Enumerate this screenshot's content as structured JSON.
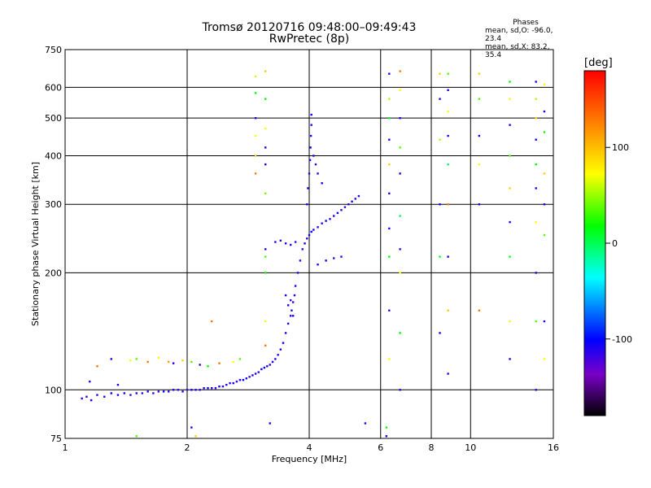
{
  "title": {
    "line1": "Tromsø 20120716 09:48:00–09:49:43",
    "line2": "RwPretec (8p)"
  },
  "stats": {
    "header": "Phases",
    "line1": "mean, sd,O: -96.0, 23.4",
    "line2": "mean, sd,X: 83.2, 35.4"
  },
  "colorbar": {
    "unit": "[deg]",
    "range": [
      -180,
      180
    ],
    "tick_labels": [
      "100",
      "0",
      "-100"
    ],
    "tick_values": [
      100,
      0,
      -100
    ]
  },
  "chart_data": {
    "type": "scatter",
    "xlabel": "Frequency [MHz]",
    "ylabel": "Stationary phase Virtual Height [km]",
    "xscale": "log",
    "yscale": "log",
    "xlim": [
      1,
      16
    ],
    "ylim": [
      75,
      750
    ],
    "grid": true,
    "x_ticks": [
      1,
      2,
      4,
      6,
      8,
      10,
      16
    ],
    "x_tick_labels": [
      "1",
      "2",
      "4",
      "6",
      "8",
      "10",
      "16"
    ],
    "y_ticks": [
      75,
      100,
      200,
      300,
      400,
      500,
      600,
      750
    ],
    "y_tick_labels": [
      "75",
      "100",
      "200",
      "300",
      "400",
      "500",
      "600",
      "750"
    ],
    "x_grid": [
      2,
      4,
      6,
      8,
      10
    ],
    "y_grid": [
      100,
      200,
      300,
      400,
      500,
      600
    ],
    "series": [
      {
        "points": [
          [
            1.1,
            95,
            -100
          ],
          [
            1.13,
            96,
            -110
          ],
          [
            1.16,
            94,
            -95
          ],
          [
            1.2,
            97,
            -100
          ],
          [
            1.25,
            96,
            -105
          ],
          [
            1.3,
            98,
            -90
          ],
          [
            1.35,
            97,
            -100
          ],
          [
            1.4,
            98,
            -95
          ],
          [
            1.45,
            97,
            -110
          ],
          [
            1.5,
            98,
            -100
          ],
          [
            1.55,
            98,
            -105
          ],
          [
            1.6,
            99,
            -95
          ],
          [
            1.65,
            98,
            -100
          ],
          [
            1.7,
            99,
            -110
          ],
          [
            1.75,
            99,
            -90
          ],
          [
            1.8,
            99,
            -100
          ],
          [
            1.85,
            100,
            -95
          ],
          [
            1.9,
            100,
            -105
          ],
          [
            1.95,
            99,
            -100
          ],
          [
            2.0,
            100,
            -110
          ],
          [
            2.05,
            100,
            -95
          ],
          [
            2.1,
            100,
            -100
          ],
          [
            2.15,
            100,
            -105
          ],
          [
            2.2,
            101,
            -100
          ],
          [
            2.25,
            101,
            -90
          ],
          [
            2.3,
            101,
            -100
          ],
          [
            2.35,
            101,
            -110
          ],
          [
            2.4,
            102,
            -95
          ],
          [
            2.45,
            102,
            -100
          ],
          [
            2.5,
            103,
            -105
          ],
          [
            2.55,
            104,
            -100
          ],
          [
            2.6,
            104,
            -95
          ],
          [
            2.65,
            105,
            -110
          ],
          [
            2.7,
            106,
            -100
          ],
          [
            2.75,
            106,
            -90
          ],
          [
            2.8,
            107,
            -100
          ],
          [
            2.85,
            108,
            -105
          ],
          [
            2.9,
            109,
            -95
          ],
          [
            2.95,
            110,
            -100
          ],
          [
            3.0,
            111,
            -110
          ],
          [
            3.05,
            113,
            -100
          ],
          [
            3.1,
            114,
            -90
          ],
          [
            3.15,
            115,
            -100
          ],
          [
            3.2,
            116,
            -105
          ],
          [
            3.25,
            118,
            -95
          ],
          [
            3.3,
            120,
            -100
          ],
          [
            3.35,
            123,
            -110
          ],
          [
            3.4,
            127,
            -100
          ],
          [
            3.45,
            132,
            -90
          ],
          [
            3.5,
            140,
            -100
          ],
          [
            3.55,
            148,
            -105
          ],
          [
            3.6,
            155,
            -95
          ],
          [
            3.62,
            160,
            -100
          ],
          [
            3.65,
            168,
            -110
          ],
          [
            3.68,
            175,
            -100
          ],
          [
            3.7,
            185,
            -95
          ],
          [
            3.75,
            200,
            -100
          ],
          [
            3.8,
            215,
            -110
          ],
          [
            3.85,
            230,
            -100
          ],
          [
            3.9,
            238,
            -95
          ],
          [
            3.95,
            245,
            -105
          ],
          [
            4.0,
            250,
            -100
          ],
          [
            4.05,
            255,
            -90
          ],
          [
            4.1,
            258,
            -100
          ],
          [
            4.2,
            262,
            -110
          ],
          [
            4.3,
            268,
            -100
          ],
          [
            4.4,
            272,
            -95
          ],
          [
            4.5,
            275,
            -105
          ],
          [
            4.6,
            280,
            -100
          ],
          [
            4.7,
            285,
            -90
          ],
          [
            4.8,
            290,
            -100
          ],
          [
            4.9,
            295,
            -110
          ],
          [
            5.0,
            300,
            -100
          ],
          [
            5.1,
            305,
            -95
          ],
          [
            5.2,
            310,
            -105
          ],
          [
            5.3,
            315,
            -100
          ],
          [
            3.95,
            300,
            -100
          ],
          [
            3.97,
            330,
            -95
          ],
          [
            4.0,
            360,
            -110
          ],
          [
            4.02,
            390,
            -100
          ],
          [
            4.03,
            420,
            -90
          ],
          [
            4.04,
            450,
            -100
          ],
          [
            4.05,
            480,
            -105
          ],
          [
            4.05,
            510,
            -95
          ],
          [
            4.1,
            400,
            -100
          ],
          [
            4.15,
            380,
            -110
          ],
          [
            4.2,
            360,
            -100
          ],
          [
            4.3,
            340,
            -95
          ],
          [
            3.3,
            240,
            -100
          ],
          [
            3.4,
            242,
            -105
          ],
          [
            3.5,
            238,
            -95
          ],
          [
            3.6,
            236,
            -100
          ],
          [
            3.7,
            240,
            -110
          ],
          [
            4.2,
            210,
            -100
          ],
          [
            4.4,
            215,
            -95
          ],
          [
            4.6,
            218,
            -105
          ],
          [
            4.8,
            220,
            -100
          ],
          [
            3.5,
            175,
            -100
          ],
          [
            3.55,
            165,
            -95
          ],
          [
            3.6,
            170,
            -110
          ],
          [
            3.65,
            155,
            -100
          ]
        ]
      },
      {
        "points": [
          [
            2.95,
            640,
            90
          ],
          [
            2.95,
            580,
            40
          ],
          [
            2.95,
            500,
            -100
          ],
          [
            2.95,
            450,
            100
          ],
          [
            2.95,
            400,
            120
          ],
          [
            2.95,
            360,
            150
          ],
          [
            3.12,
            660,
            120
          ],
          [
            3.12,
            560,
            40
          ],
          [
            3.12,
            470,
            100
          ],
          [
            3.12,
            420,
            -100
          ],
          [
            3.12,
            380,
            -100
          ],
          [
            3.12,
            320,
            70
          ],
          [
            3.12,
            230,
            -100
          ],
          [
            3.12,
            220,
            60
          ],
          [
            3.12,
            200,
            40
          ],
          [
            3.12,
            150,
            100
          ],
          [
            3.12,
            130,
            150
          ],
          [
            6.3,
            650,
            -100
          ],
          [
            6.3,
            560,
            80
          ],
          [
            6.3,
            500,
            30
          ],
          [
            6.3,
            440,
            -100
          ],
          [
            6.3,
            380,
            120
          ],
          [
            6.3,
            320,
            -100
          ],
          [
            6.3,
            260,
            -100
          ],
          [
            6.3,
            220,
            40
          ],
          [
            6.3,
            160,
            -100
          ],
          [
            6.3,
            120,
            100
          ],
          [
            6.7,
            660,
            150
          ],
          [
            6.7,
            590,
            100
          ],
          [
            6.7,
            500,
            -100
          ],
          [
            6.7,
            420,
            60
          ],
          [
            6.7,
            360,
            -100
          ],
          [
            6.7,
            280,
            20
          ],
          [
            6.7,
            230,
            -100
          ],
          [
            6.7,
            200,
            100
          ],
          [
            6.7,
            140,
            40
          ],
          [
            6.7,
            100,
            -100
          ],
          [
            8.4,
            650,
            120
          ],
          [
            8.4,
            560,
            -100
          ],
          [
            8.4,
            440,
            80
          ],
          [
            8.4,
            300,
            -100
          ],
          [
            8.4,
            220,
            30
          ],
          [
            8.4,
            140,
            -100
          ],
          [
            8.8,
            650,
            60
          ],
          [
            8.8,
            590,
            -100
          ],
          [
            8.8,
            520,
            100
          ],
          [
            8.8,
            450,
            -100
          ],
          [
            8.8,
            380,
            20
          ],
          [
            8.8,
            300,
            150
          ],
          [
            8.8,
            220,
            -100
          ],
          [
            8.8,
            160,
            120
          ],
          [
            8.8,
            110,
            -100
          ],
          [
            10.5,
            650,
            120
          ],
          [
            10.5,
            560,
            60
          ],
          [
            10.5,
            450,
            -100
          ],
          [
            10.5,
            380,
            100
          ],
          [
            10.5,
            300,
            -100
          ],
          [
            10.5,
            160,
            150
          ],
          [
            12.5,
            620,
            40
          ],
          [
            12.5,
            560,
            100
          ],
          [
            12.5,
            480,
            -100
          ],
          [
            12.5,
            400,
            60
          ],
          [
            12.5,
            330,
            120
          ],
          [
            12.5,
            270,
            -100
          ],
          [
            12.5,
            220,
            30
          ],
          [
            12.5,
            150,
            100
          ],
          [
            12.5,
            120,
            -100
          ],
          [
            14.5,
            620,
            -100
          ],
          [
            14.5,
            560,
            80
          ],
          [
            14.5,
            500,
            120
          ],
          [
            14.5,
            440,
            -100
          ],
          [
            14.5,
            380,
            40
          ],
          [
            14.5,
            330,
            -100
          ],
          [
            14.5,
            270,
            100
          ],
          [
            14.5,
            200,
            -100
          ],
          [
            14.5,
            150,
            60
          ],
          [
            14.5,
            100,
            -100
          ],
          [
            15.2,
            610,
            100
          ],
          [
            15.2,
            520,
            -100
          ],
          [
            15.2,
            460,
            40
          ],
          [
            15.2,
            360,
            120
          ],
          [
            15.2,
            300,
            -100
          ],
          [
            15.2,
            250,
            60
          ],
          [
            15.2,
            150,
            -100
          ],
          [
            15.2,
            120,
            100
          ],
          [
            1.2,
            115,
            150
          ],
          [
            1.3,
            120,
            -100
          ],
          [
            1.45,
            119,
            100
          ],
          [
            1.5,
            120,
            60
          ],
          [
            1.6,
            118,
            150
          ],
          [
            1.7,
            121,
            100
          ],
          [
            1.8,
            118,
            140
          ],
          [
            1.85,
            117,
            -100
          ],
          [
            1.95,
            119,
            120
          ],
          [
            2.05,
            118,
            60
          ],
          [
            2.15,
            116,
            -100
          ],
          [
            2.25,
            115,
            40
          ],
          [
            2.4,
            117,
            150
          ],
          [
            2.6,
            118,
            100
          ],
          [
            2.7,
            120,
            60
          ],
          [
            1.15,
            105,
            -100
          ],
          [
            1.35,
            103,
            -100
          ],
          [
            2.3,
            150,
            150
          ],
          [
            2.1,
            76,
            120
          ],
          [
            1.5,
            76,
            60
          ],
          [
            2.05,
            80,
            -100
          ],
          [
            3.2,
            82,
            -100
          ],
          [
            5.5,
            82,
            -100
          ],
          [
            6.2,
            76,
            -100
          ],
          [
            6.2,
            80,
            40
          ]
        ]
      }
    ]
  }
}
